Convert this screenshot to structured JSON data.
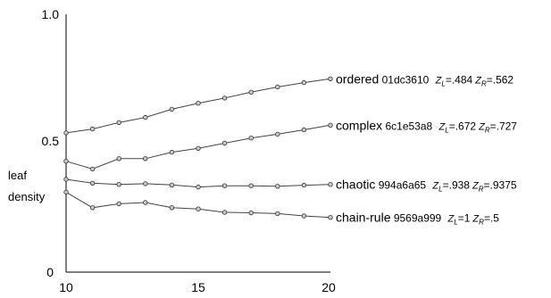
{
  "chart_data": {
    "type": "line",
    "title": "",
    "xlabel": "",
    "ylabel": [
      "leaf",
      "density"
    ],
    "xlim": [
      10,
      20
    ],
    "ylim": [
      0,
      1.0
    ],
    "x_ticks": [
      "10",
      "15",
      "20"
    ],
    "y_ticks": [
      "1.0",
      "0.5",
      "0"
    ],
    "x": [
      10,
      11,
      12,
      13,
      14,
      15,
      16,
      17,
      18,
      19,
      20
    ],
    "grid": false,
    "legend": "inline-right",
    "series": [
      {
        "name": "ordered",
        "code": "01dc3610",
        "zl": "=.484",
        "zr": "=.562",
        "values": [
          0.54,
          0.555,
          0.58,
          0.6,
          0.632,
          0.655,
          0.675,
          0.698,
          0.718,
          0.735,
          0.75
        ]
      },
      {
        "name": "complex",
        "code": "6c1e53a8",
        "zl": "=.672",
        "zr": "=.727",
        "values": [
          0.43,
          0.4,
          0.44,
          0.44,
          0.465,
          0.48,
          0.5,
          0.52,
          0.535,
          0.552,
          0.57
        ]
      },
      {
        "name": "chaotic",
        "code": "994a6a65",
        "zl": "=.938",
        "zr": "=.9375",
        "values": [
          0.36,
          0.345,
          0.34,
          0.343,
          0.338,
          0.33,
          0.335,
          0.335,
          0.333,
          0.337,
          0.34
        ]
      },
      {
        "name": "chain-rule",
        "code": "9569a999",
        "zl": "=1",
        "zr": "=.5",
        "values": [
          0.31,
          0.25,
          0.265,
          0.27,
          0.25,
          0.245,
          0.232,
          0.23,
          0.227,
          0.218,
          0.212
        ]
      }
    ]
  }
}
